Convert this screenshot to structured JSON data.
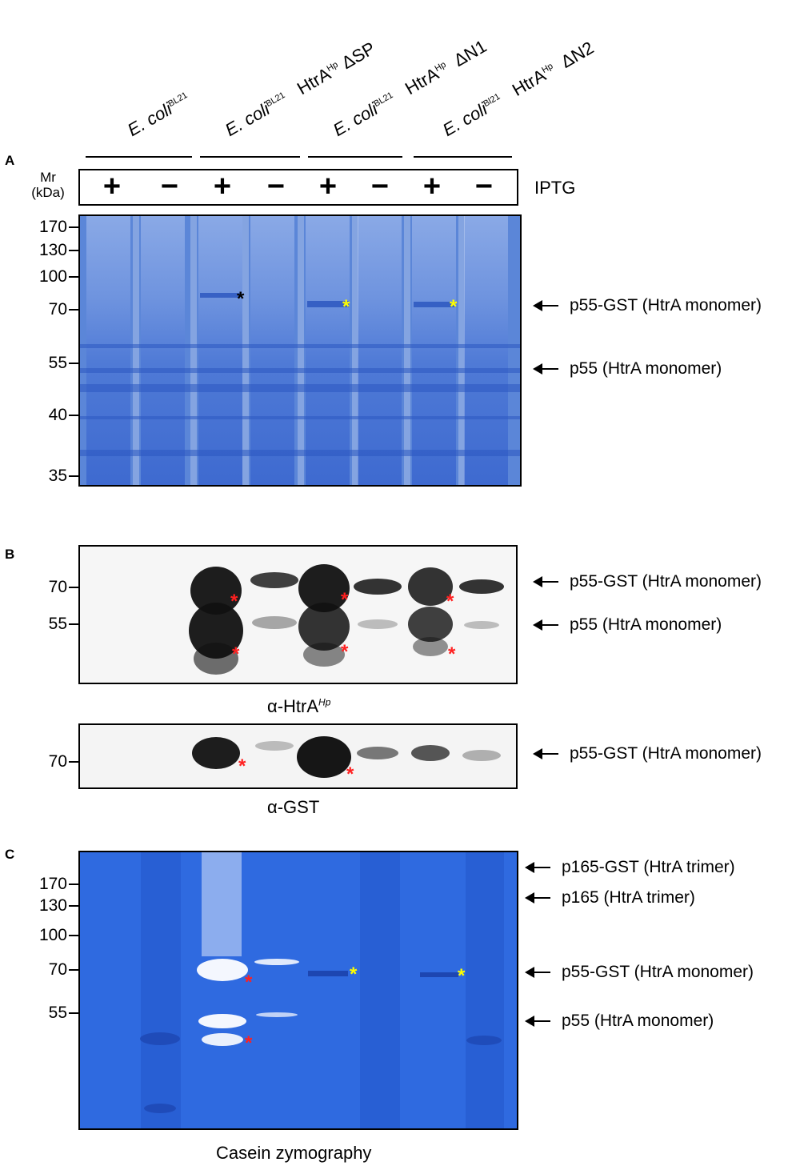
{
  "lanes": {
    "groups": [
      {
        "organism": "E. coli",
        "strain": "BL21",
        "construct": "",
        "construct_sup": "",
        "mutation": ""
      },
      {
        "organism": "E. coli",
        "strain": "BL21",
        "construct": "HtrA",
        "construct_sup": "Hp",
        "mutation": "ΔSP"
      },
      {
        "organism": "E. coli",
        "strain": "BL21",
        "construct": "HtrA",
        "construct_sup": "Hp",
        "mutation": "ΔN1"
      },
      {
        "organism": "E. coli",
        "strain": "Bl21",
        "construct": "HtrA",
        "construct_sup": "Hp",
        "mutation": "ΔN2"
      }
    ],
    "iptg_signs": [
      "+",
      "−",
      "+",
      "−",
      "+",
      "−",
      "+",
      "−"
    ],
    "iptg_label": "IPTG",
    "mr_label_line1": "Mr",
    "mr_label_line2": "(kDa)"
  },
  "panel_a": {
    "letter": "A",
    "markers": [
      "170",
      "130",
      "100",
      "70",
      "55",
      "40",
      "35"
    ],
    "bands": [
      {
        "label": "p55-GST (HtrA monomer)"
      },
      {
        "label": "p55 (HtrA monomer)"
      }
    ],
    "stars": [
      {
        "symbol": "*",
        "color": "#000000"
      },
      {
        "symbol": "*",
        "color": "#ffff00"
      },
      {
        "symbol": "*",
        "color": "#ffff00"
      }
    ],
    "gel_color": "#5b86d8"
  },
  "panel_b": {
    "letter": "B",
    "blot1": {
      "markers": [
        "70",
        "55"
      ],
      "bands": [
        {
          "label": "p55-GST (HtrA monomer)"
        },
        {
          "label": "p55 (HtrA monomer)"
        }
      ],
      "caption_main": "α-HtrA",
      "caption_sup": "Hp"
    },
    "blot2": {
      "markers": [
        "70"
      ],
      "bands": [
        {
          "label": "p55-GST (HtrA monomer)"
        }
      ],
      "caption_main": "α-GST"
    },
    "star_color": "#ff2020"
  },
  "panel_c": {
    "letter": "C",
    "markers": [
      "170",
      "130",
      "100",
      "70",
      "55"
    ],
    "bands": [
      {
        "label": "p165-GST (HtrA trimer)"
      },
      {
        "label": "p165 (HtrA trimer)"
      },
      {
        "label": "p55-GST (HtrA monomer)"
      },
      {
        "label": "p55 (HtrA monomer)"
      }
    ],
    "caption": "Casein zymography",
    "gel_color": "#2f6ae0"
  }
}
